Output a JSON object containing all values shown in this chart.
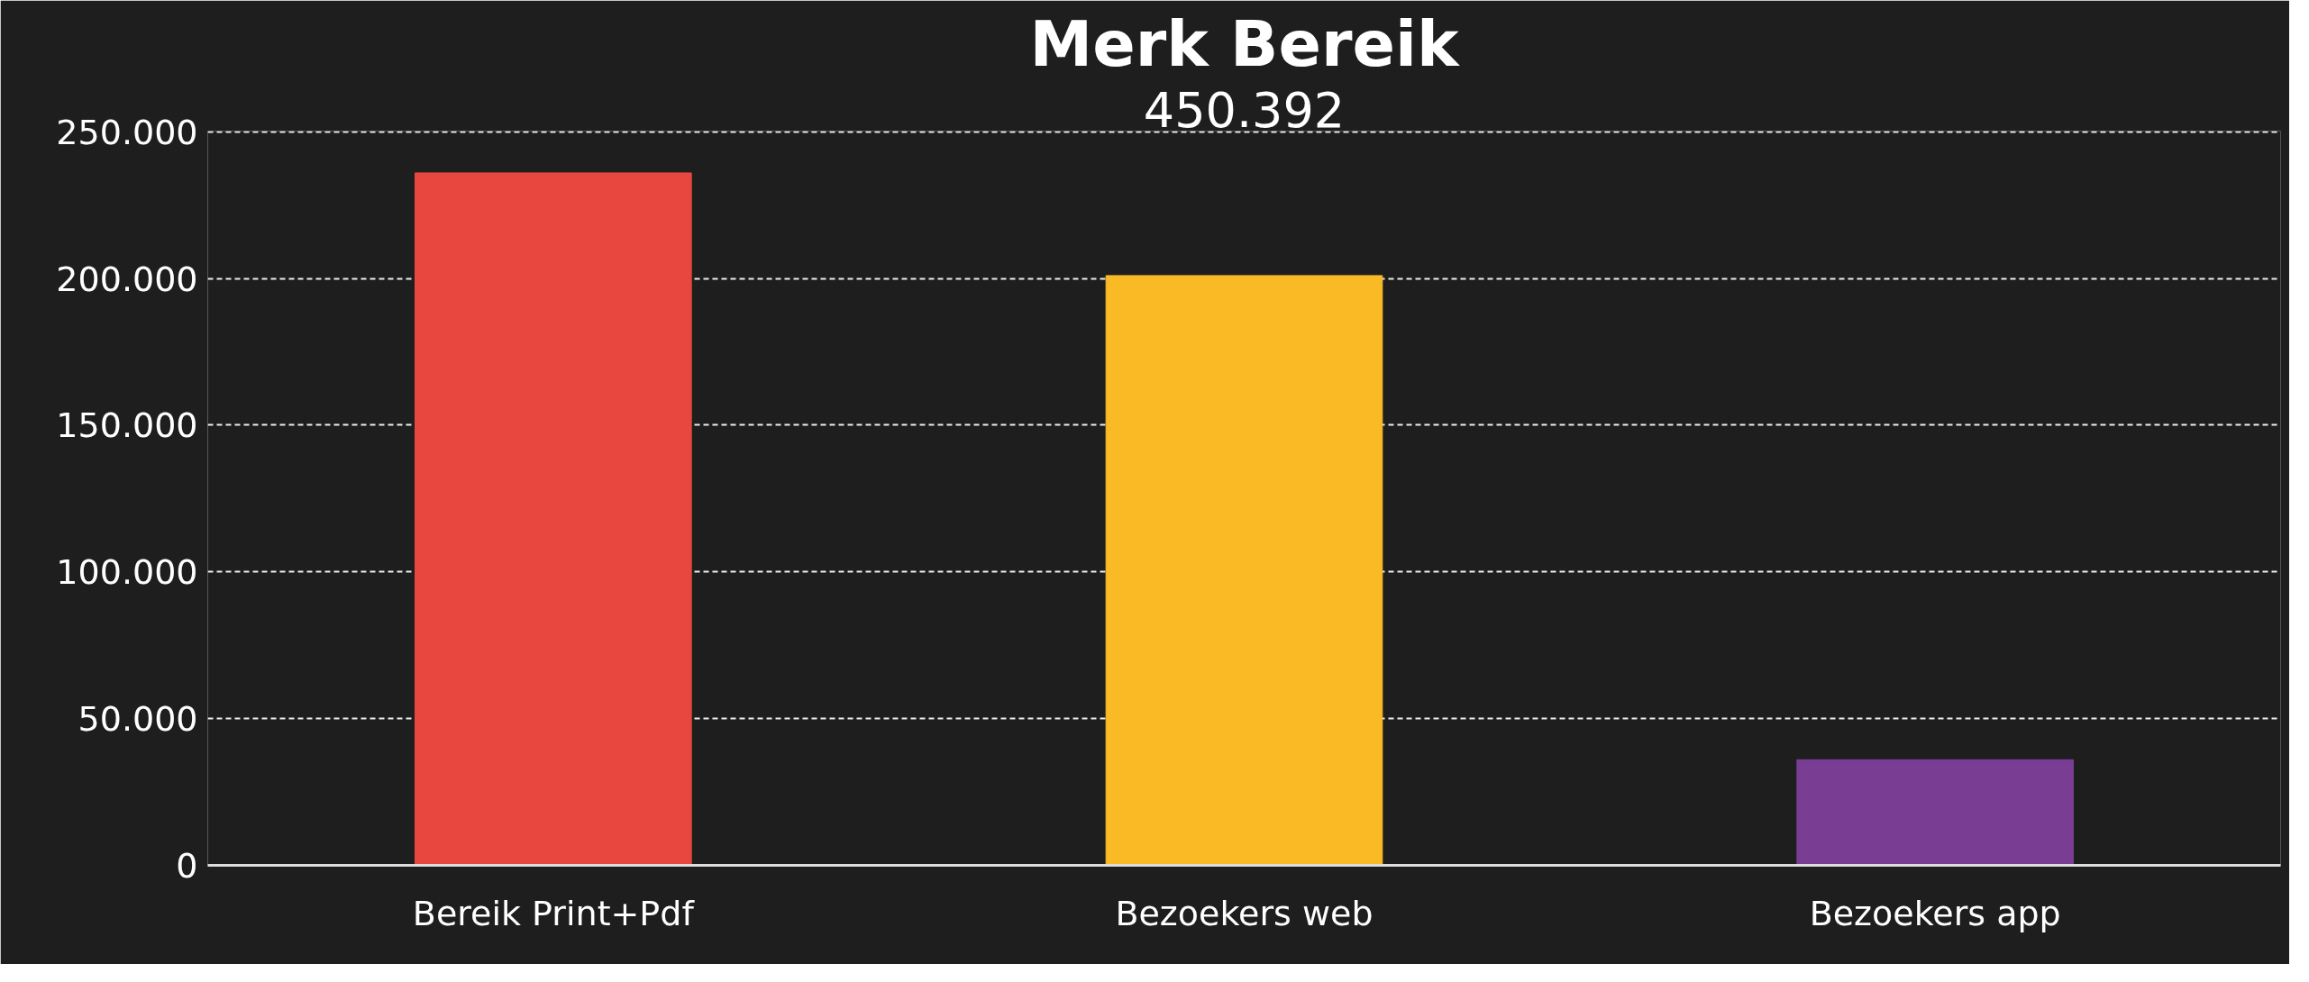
{
  "chart_data": {
    "type": "bar",
    "title": "Merk Bereik",
    "subtitle": "450.392",
    "categories": [
      "Bereik Print+Pdf",
      "Bezoekers web",
      "Bezoekers app"
    ],
    "values": [
      236000,
      201000,
      36000
    ],
    "colors": [
      "#e8473f",
      "#f9ba26",
      "#7a3d94"
    ],
    "ylim": [
      0,
      250000
    ],
    "yticks": [
      {
        "value": 0,
        "label": "0"
      },
      {
        "value": 50000,
        "label": "50.000"
      },
      {
        "value": 100000,
        "label": "100.000"
      },
      {
        "value": 150000,
        "label": "150.000"
      },
      {
        "value": 200000,
        "label": "200.000"
      },
      {
        "value": 250000,
        "label": "250.000"
      }
    ],
    "grid": "y"
  }
}
